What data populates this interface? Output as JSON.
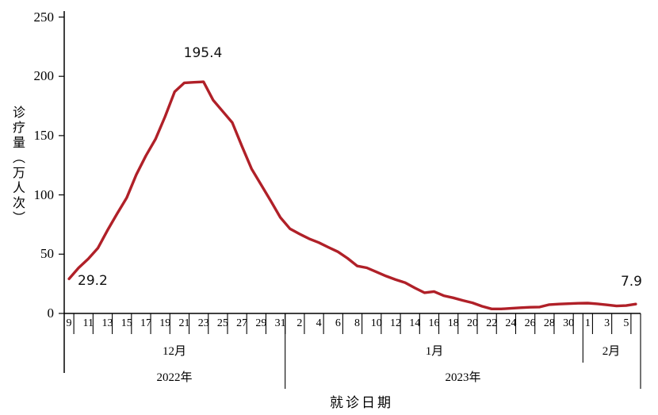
{
  "chart_data": {
    "type": "line",
    "title": "",
    "xlabel": "就诊日期",
    "ylabel": "诊疗量（万人次）",
    "ylim": [
      0,
      250
    ],
    "y_ticks": [
      0,
      50,
      100,
      150,
      200,
      250
    ],
    "grid": false,
    "legend": false,
    "line_color": "#b02028",
    "axis_color": "#000000",
    "background_color": "#ffffff",
    "x_groups": [
      {
        "month_label": "12月",
        "year_label": "2022年",
        "first_day": 9,
        "num_days": 23,
        "labeled_days": [
          9,
          11,
          13,
          15,
          17,
          19,
          21,
          23,
          25,
          27,
          29,
          31
        ]
      },
      {
        "month_label": "1月",
        "year_label": "2023年",
        "first_day": 1,
        "num_days": 31,
        "labeled_days": [
          2,
          4,
          6,
          8,
          10,
          12,
          14,
          16,
          18,
          20,
          22,
          24,
          26,
          28,
          30
        ]
      },
      {
        "month_label": "2月",
        "year_label": "2023年",
        "first_day": 1,
        "num_days": 6,
        "labeled_days": [
          1,
          3,
          5
        ]
      }
    ],
    "series": [
      {
        "name": "诊疗量",
        "values": [
          29.2,
          38.5,
          46,
          55,
          70,
          84,
          97.5,
          117,
          133,
          147,
          166,
          187,
          194.5,
          195,
          195.4,
          180,
          170.5,
          161,
          141,
          122,
          108.5,
          95,
          81,
          71.5,
          67,
          63,
          59.8,
          55.8,
          52,
          46.5,
          40,
          38.5,
          35,
          31.5,
          28.5,
          26,
          21.5,
          17.5,
          18.5,
          15,
          13.2,
          11,
          9,
          6,
          3.8,
          3.8,
          4.3,
          4.8,
          5.2,
          5.4,
          7.4,
          7.9,
          8.2,
          8.6,
          8.7,
          8.1,
          7.2,
          6.3,
          6.6,
          7.9
        ]
      }
    ],
    "annotations": [
      {
        "label": "29.2",
        "day_index": 0
      },
      {
        "label": "195.4",
        "day_index": 14
      },
      {
        "label": "7.9",
        "day_index": 59
      }
    ]
  }
}
